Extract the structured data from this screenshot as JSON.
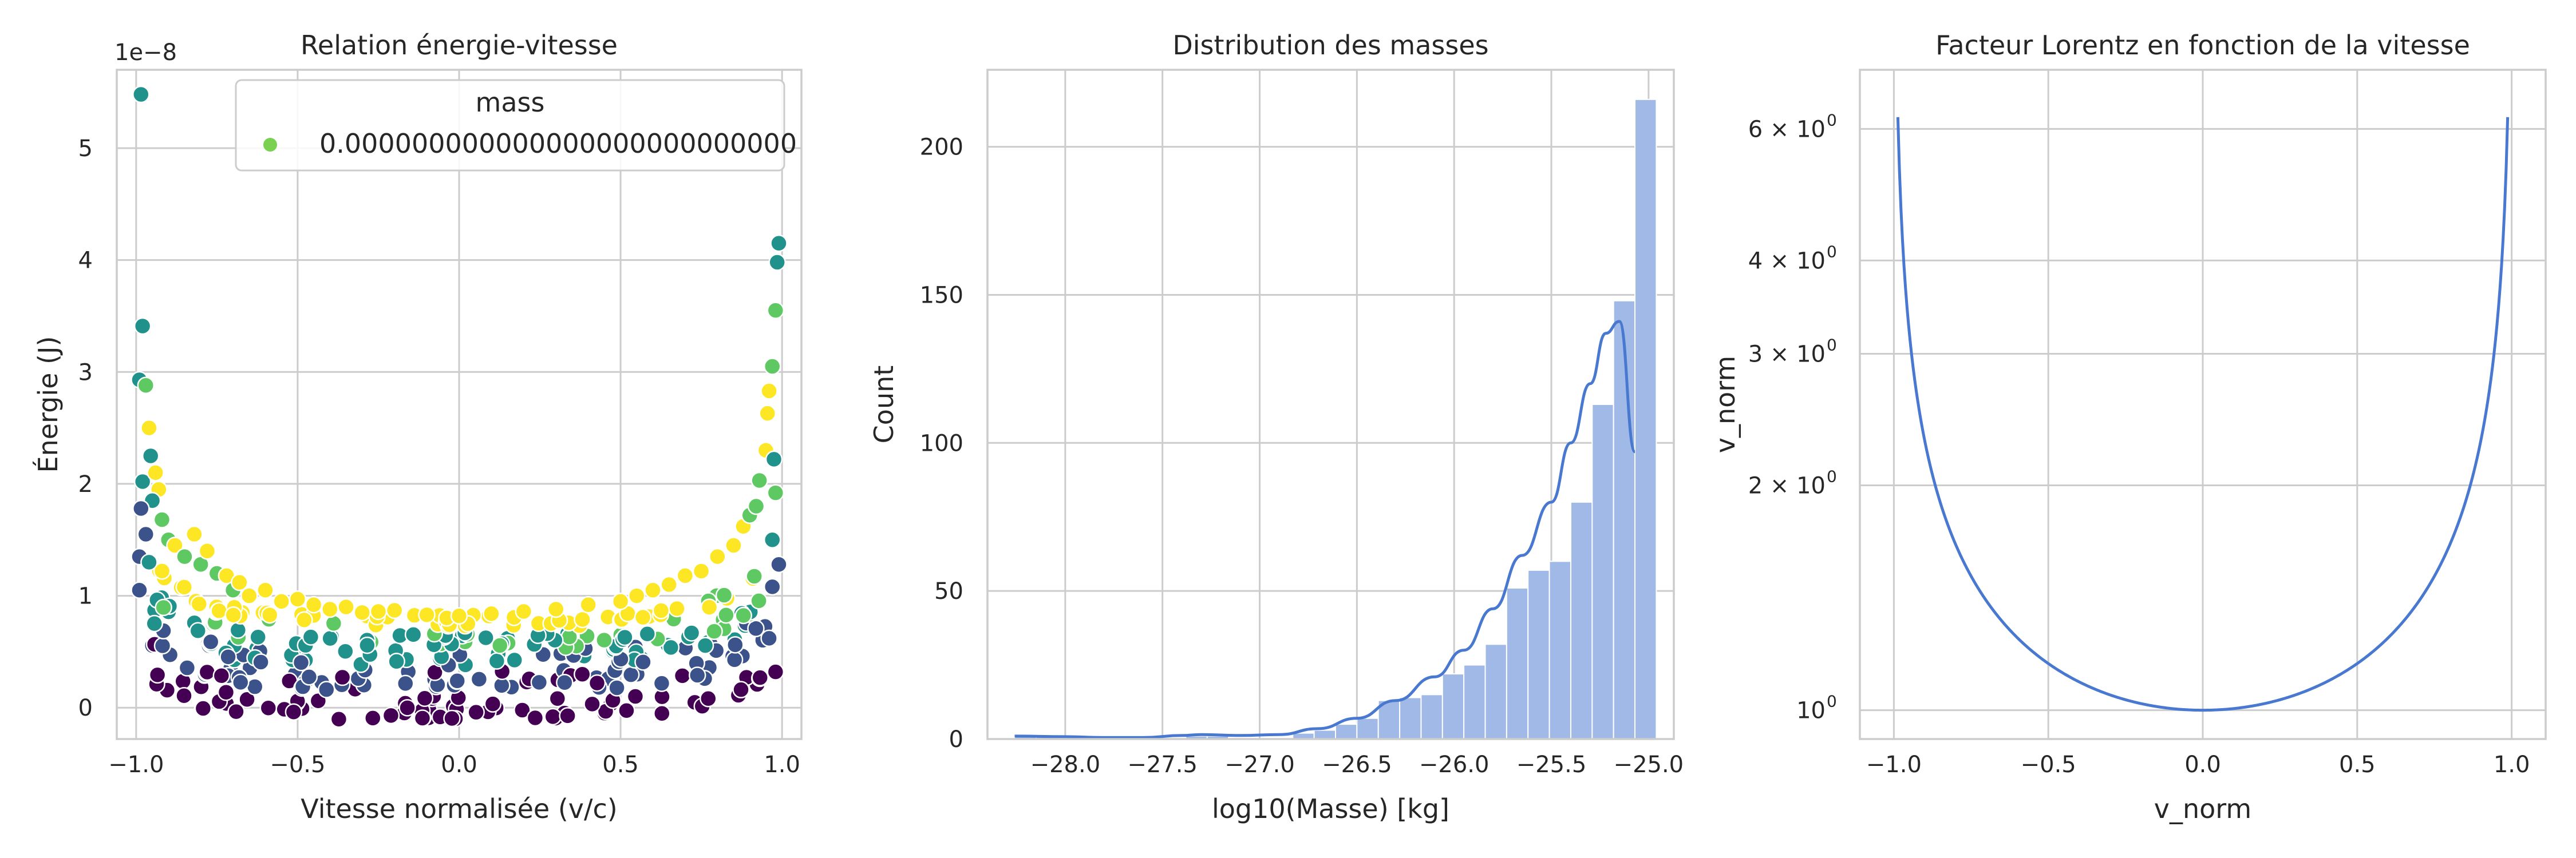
{
  "chart_data": [
    {
      "type": "scatter",
      "title": "Relation énergie-vitesse",
      "xlabel": "Vitesse normalisée (v/c)",
      "ylabel": "Énergie (J)",
      "offset_text": "1e−8",
      "xlim": [
        -1.06,
        1.06
      ],
      "ylim": [
        -0.28,
        5.7
      ],
      "xticks": [
        -1.0,
        -0.5,
        0.0,
        0.5,
        1.0
      ],
      "xtick_labels": [
        "−1.0",
        "−0.5",
        "0.0",
        "0.5",
        "1.0"
      ],
      "yticks": [
        0,
        1,
        2,
        3,
        4,
        5
      ],
      "ytick_labels": [
        "0",
        "1",
        "2",
        "3",
        "4",
        "5"
      ],
      "y_units_multiplier": 1e-08,
      "grid": true,
      "legend": {
        "placement": "upper right",
        "title": "mass",
        "entries": [
          {
            "label": "0.000000000000000000000000000",
            "color": "#7ad151"
          }
        ]
      },
      "colormap": "viridis",
      "color_levels": [
        "#440154",
        "#3b528b",
        "#21918c",
        "#5ec962",
        "#fde725"
      ],
      "points": [
        {
          "x": -0.985,
          "y": 5.48,
          "c": 0.62
        },
        {
          "x": -0.98,
          "y": 3.41,
          "c": 0.6
        },
        {
          "x": -0.99,
          "y": 2.93,
          "c": 0.45
        },
        {
          "x": -0.97,
          "y": 2.88,
          "c": 0.72
        },
        {
          "x": -0.96,
          "y": 2.5,
          "c": 0.9
        },
        {
          "x": -0.955,
          "y": 2.25,
          "c": 0.55
        },
        {
          "x": -0.98,
          "y": 2.02,
          "c": 0.4
        },
        {
          "x": -0.94,
          "y": 2.1,
          "c": 0.92
        },
        {
          "x": -0.93,
          "y": 1.95,
          "c": 0.95
        },
        {
          "x": -0.95,
          "y": 1.85,
          "c": 0.6
        },
        {
          "x": -0.985,
          "y": 1.78,
          "c": 0.3
        },
        {
          "x": -0.99,
          "y": 1.35,
          "c": 0.2
        },
        {
          "x": -0.99,
          "y": 1.05,
          "c": 0.25
        },
        {
          "x": -0.97,
          "y": 1.55,
          "c": 0.35
        },
        {
          "x": -0.96,
          "y": 1.3,
          "c": 0.45
        },
        {
          "x": -0.92,
          "y": 1.68,
          "c": 0.75
        },
        {
          "x": -0.9,
          "y": 1.5,
          "c": 0.65
        },
        {
          "x": -0.88,
          "y": 1.45,
          "c": 0.9
        },
        {
          "x": -0.85,
          "y": 1.35,
          "c": 0.8
        },
        {
          "x": -0.82,
          "y": 1.55,
          "c": 0.95
        },
        {
          "x": -0.8,
          "y": 1.28,
          "c": 0.7
        },
        {
          "x": -0.78,
          "y": 1.4,
          "c": 0.93
        },
        {
          "x": -0.75,
          "y": 1.2,
          "c": 0.85
        },
        {
          "x": -0.72,
          "y": 1.18,
          "c": 0.97
        },
        {
          "x": -0.7,
          "y": 1.05,
          "c": 0.8
        },
        {
          "x": -0.68,
          "y": 1.12,
          "c": 0.96
        },
        {
          "x": -0.65,
          "y": 1.0,
          "c": 0.9
        },
        {
          "x": -0.6,
          "y": 1.05,
          "c": 0.97
        },
        {
          "x": -0.55,
          "y": 0.95,
          "c": 0.9
        },
        {
          "x": -0.5,
          "y": 0.97,
          "c": 0.98
        },
        {
          "x": -0.45,
          "y": 0.92,
          "c": 0.95
        },
        {
          "x": -0.4,
          "y": 0.88,
          "c": 0.97
        },
        {
          "x": -0.35,
          "y": 0.9,
          "c": 0.94
        },
        {
          "x": -0.3,
          "y": 0.85,
          "c": 0.92
        },
        {
          "x": -0.25,
          "y": 0.86,
          "c": 0.97
        },
        {
          "x": -0.2,
          "y": 0.87,
          "c": 0.95
        },
        {
          "x": -0.1,
          "y": 0.83,
          "c": 0.96
        },
        {
          "x": 0.0,
          "y": 0.82,
          "c": 0.98
        },
        {
          "x": 0.1,
          "y": 0.84,
          "c": 0.95
        },
        {
          "x": 0.2,
          "y": 0.86,
          "c": 0.97
        },
        {
          "x": 0.3,
          "y": 0.88,
          "c": 0.96
        },
        {
          "x": 0.4,
          "y": 0.92,
          "c": 0.95
        },
        {
          "x": 0.5,
          "y": 0.95,
          "c": 0.97
        },
        {
          "x": 0.55,
          "y": 1.0,
          "c": 0.98
        },
        {
          "x": 0.6,
          "y": 1.05,
          "c": 0.96
        },
        {
          "x": 0.65,
          "y": 1.1,
          "c": 0.98
        },
        {
          "x": 0.7,
          "y": 1.18,
          "c": 0.95
        },
        {
          "x": 0.75,
          "y": 1.22,
          "c": 0.9
        },
        {
          "x": 0.8,
          "y": 1.35,
          "c": 0.93
        },
        {
          "x": 0.85,
          "y": 1.45,
          "c": 0.97
        },
        {
          "x": 0.88,
          "y": 1.62,
          "c": 0.93
        },
        {
          "x": 0.9,
          "y": 1.72,
          "c": 0.85
        },
        {
          "x": 0.92,
          "y": 1.8,
          "c": 0.7
        },
        {
          "x": 0.93,
          "y": 2.03,
          "c": 0.8
        },
        {
          "x": 0.95,
          "y": 2.3,
          "c": 0.95
        },
        {
          "x": 0.955,
          "y": 2.63,
          "c": 0.9
        },
        {
          "x": 0.96,
          "y": 2.83,
          "c": 0.97
        },
        {
          "x": 0.97,
          "y": 3.05,
          "c": 0.85
        },
        {
          "x": 0.975,
          "y": 2.22,
          "c": 0.5
        },
        {
          "x": 0.98,
          "y": 3.55,
          "c": 0.8
        },
        {
          "x": 0.985,
          "y": 3.98,
          "c": 0.6
        },
        {
          "x": 0.99,
          "y": 4.15,
          "c": 0.55
        },
        {
          "x": 0.98,
          "y": 1.92,
          "c": 0.65
        },
        {
          "x": 0.97,
          "y": 1.5,
          "c": 0.45
        },
        {
          "x": 0.99,
          "y": 1.28,
          "c": 0.35
        },
        {
          "x": 0.97,
          "y": 1.08,
          "c": 0.3
        },
        {
          "x": 0.96,
          "y": 0.62,
          "c": 0.2
        },
        {
          "x": 0.98,
          "y": 0.32,
          "c": 0.1
        }
      ],
      "band_fills": [
        {
          "x_from": -0.95,
          "x_to": 0.95,
          "y_base": 0.0,
          "spread": 0.22,
          "c": 0.02
        },
        {
          "x_from": -0.95,
          "x_to": 0.95,
          "y_base": 0.25,
          "spread": 0.18,
          "c": 0.2
        },
        {
          "x_from": -0.95,
          "x_to": 0.95,
          "y_base": 0.45,
          "spread": 0.16,
          "c": 0.4
        },
        {
          "x_from": -0.95,
          "x_to": 0.95,
          "y_base": 0.6,
          "spread": 0.14,
          "c": 0.6
        },
        {
          "x_from": -0.95,
          "x_to": 0.95,
          "y_base": 0.78,
          "spread": 0.1,
          "c": 0.95
        }
      ]
    },
    {
      "type": "bar",
      "subtype": "histogram_with_kde",
      "title": "Distribution des masses",
      "xlabel": "log10(Masse) [kg]",
      "ylabel": "Count",
      "xlim": [
        -28.4,
        -24.87
      ],
      "ylim": [
        0,
        226
      ],
      "xticks": [
        -28.0,
        -27.5,
        -27.0,
        -26.5,
        -26.0,
        -25.5,
        -25.0
      ],
      "xtick_labels": [
        "−28.0",
        "−27.5",
        "−27.0",
        "−26.5",
        "−26.0",
        "−25.5",
        "−25.0"
      ],
      "yticks": [
        0,
        50,
        100,
        150,
        200
      ],
      "ytick_labels": [
        "0",
        "50",
        "100",
        "150",
        "200"
      ],
      "grid": true,
      "bar_color": "#a1b9e6",
      "line_color": "#4878cf",
      "bin_edges": [
        -28.26,
        -28.15,
        -28.04,
        -27.93,
        -27.82,
        -27.71,
        -27.6,
        -27.49,
        -27.38,
        -27.27,
        -27.16,
        -27.05,
        -26.94,
        -26.83,
        -26.72,
        -26.61,
        -26.5,
        -26.39,
        -26.28,
        -26.17,
        -26.06,
        -25.95,
        -25.84,
        -25.73,
        -25.62,
        -25.51,
        -25.4,
        -25.29,
        -25.18,
        -25.07
      ],
      "counts": [
        1,
        1,
        0,
        0,
        0,
        0,
        0,
        0,
        1,
        1,
        0,
        0,
        0,
        2,
        3,
        5,
        7,
        13,
        14,
        15,
        22,
        25,
        32,
        51,
        57,
        60,
        80,
        113,
        148,
        216
      ],
      "kde": {
        "x": [
          -28.26,
          -28.0,
          -27.8,
          -27.6,
          -27.4,
          -27.3,
          -27.1,
          -26.9,
          -26.7,
          -26.5,
          -26.3,
          -26.1,
          -25.95,
          -25.8,
          -25.65,
          -25.5,
          -25.4,
          -25.3,
          -25.22,
          -25.15,
          -25.07
        ],
        "y": [
          1,
          0.8,
          0.5,
          0.5,
          1.2,
          1.5,
          1.2,
          1.5,
          3.5,
          7,
          13,
          21,
          30,
          44,
          62,
          80,
          100,
          120,
          137,
          141,
          97
        ]
      }
    },
    {
      "type": "line",
      "title": "Facteur Lorentz en fonction de la vitesse",
      "xlabel": "v_norm",
      "ylabel": "v_norm",
      "yscale": "log",
      "xlim": [
        -1.11,
        1.11
      ],
      "ylim": [
        0.915,
        7.2
      ],
      "xticks": [
        -1.0,
        -0.5,
        0.0,
        0.5,
        1.0
      ],
      "xtick_labels": [
        "−1.0",
        "−0.5",
        "0.0",
        "0.5",
        "1.0"
      ],
      "yticks": [
        1,
        2,
        3,
        4,
        6
      ],
      "ytick_bases": [
        "10",
        "2 × 10",
        "3 × 10",
        "4 × 10",
        "6 × 10"
      ],
      "ytick_exponent": "0",
      "grid": true,
      "line_color": "#4878cf",
      "function": "1/sqrt(1 - v^2)",
      "x_range": [
        -0.987,
        0.987
      ]
    }
  ]
}
